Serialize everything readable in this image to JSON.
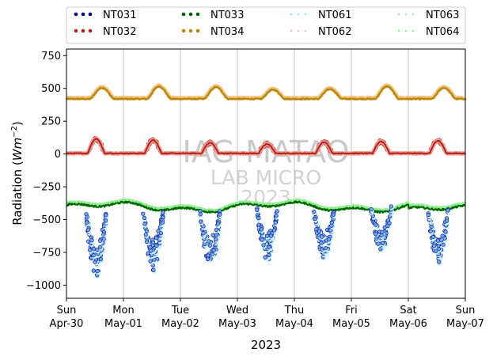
{
  "chart_data": {
    "type": "scatter",
    "xlabel": "2023",
    "ylabel_text": "Radiation (",
    "ylabel_unit_base": "Wm",
    "ylabel_unit_exp": "−2",
    "ylabel_close": ")",
    "ylim": [
      -1100,
      800
    ],
    "yticks": [
      750,
      500,
      250,
      0,
      -250,
      -500,
      -750,
      -1000
    ],
    "ytick_labels": [
      "750",
      "500",
      "250",
      "0",
      "−250",
      "−500",
      "−750",
      "−1000"
    ],
    "xlim": [
      "2023-04-30",
      "2023-05-07"
    ],
    "xticks": [
      {
        "day": "Sun",
        "date": "Apr-30"
      },
      {
        "day": "Mon",
        "date": "May-01"
      },
      {
        "day": "Tue",
        "date": "May-02"
      },
      {
        "day": "Wed",
        "date": "May-03"
      },
      {
        "day": "Thu",
        "date": "May-04"
      },
      {
        "day": "Fri",
        "date": "May-05"
      },
      {
        "day": "Sat",
        "date": "May-06"
      },
      {
        "day": "Sun",
        "date": "May-07"
      }
    ],
    "grid": "vertical",
    "legend_position": "top, outside plot, 4 columns",
    "watermark": [
      "IAG-MATAO",
      "LAB MICRO",
      "2023"
    ],
    "series": [
      {
        "name": "NT031",
        "color": "#00008b",
        "kind": "net_longwave_daily_dip",
        "baseline": -400,
        "day_min": [
          -940,
          -880,
          -860,
          -800,
          -780,
          -720,
          -820
        ]
      },
      {
        "name": "NT032",
        "color": "#b22222",
        "kind": "shortwave_reflected_daily_peak",
        "baseline": 5,
        "day_max": [
          110,
          100,
          80,
          70,
          85,
          90,
          95
        ]
      },
      {
        "name": "NT033",
        "color": "#006400",
        "kind": "net_longwave",
        "values_range": [
          -450,
          -350
        ]
      },
      {
        "name": "NT034",
        "color": "#b8860b",
        "kind": "longwave_incoming",
        "baseline": 420,
        "day_max": [
          505,
          515,
          510,
          490,
          495,
          515,
          505
        ]
      },
      {
        "name": "NT061",
        "color": "#7fffd4",
        "kind": "overlay_of_NT031"
      },
      {
        "name": "NT062",
        "color": "#ffb6c1",
        "kind": "overlay_of_NT032"
      },
      {
        "name": "NT063",
        "color": "#b0e0e6",
        "kind": "overlay_of_NT031"
      },
      {
        "name": "NT064",
        "color": "#90ee90",
        "kind": "overlay_of_NT033"
      }
    ]
  }
}
